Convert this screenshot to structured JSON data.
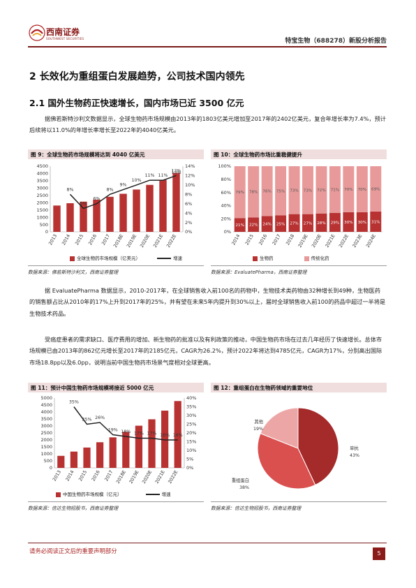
{
  "header": {
    "logo_cn": "西南证券",
    "logo_en": "SOUTHWEST SECURITIES",
    "report_title": "特宝生物（688278）新股分析报告"
  },
  "section": {
    "title": "2  长效化为重组蛋白发展趋势，公司技术国内领先",
    "subtitle": "2.1 国外生物药正快速增长，国内市场已近 3500 亿元"
  },
  "paragraphs": {
    "p1": "据佛若斯特沙利文数据显示，全球生物药市场规模由2013年的1803亿美元增加至2017年的2402亿美元，复合年增长率为7.4%，预计后续将以11.0%的年增长率增长至2022年的4040亿美元。",
    "p2": "据 EvaluatePharma 数据显示，2010-2017年，在全球销售收入前100名的药物中，生物技术类药物由32种增长到49种，生物医药的销售额占比从2010年的17%上升到2017年的25%，并有望在未来5年内提升到30%以上，届时全球销售收入前100的药品中超过一半将是生物技术药品。",
    "p3": "受癌症患者的需求缺口、医疗费用的增加、新生物药的批准以及有利政策的推动，中国生物药市场在过去几年经历了快速增长。总体市场规模已由2013年的862亿元增长至2017年的2185亿元，CAGR为26.2%，预计2022年将达到4785亿元，CAGR为17%，分别高出国际市场18.8pp以及6.0pp，说明当前中国生物药市场景气度相对全球更高。"
  },
  "figures": {
    "f9": {
      "title": "图 9：全球生物药市场规模将达到 4040 亿美元",
      "source": "数据来源：佛若斯特沙利文，西南证券整理",
      "legend_bar": "全球生物药市场规模（亿美元）",
      "legend_line": "增速"
    },
    "f10": {
      "title": "图 10：全球生物药市场比重稳健提升",
      "source": "数据来源：EvaluatePharma，西南证券整理",
      "legend_a": "生物药",
      "legend_b": "传统化药"
    },
    "f11": {
      "title": "图 11：预计中国生物药市场规模将接近 5000 亿元",
      "source": "数据来源：信达生物招股书，西南证券整理",
      "legend_bar": "中国生物药市场规模（亿元）",
      "legend_line": "增速"
    },
    "f12": {
      "title": "图 12：重组蛋白在生物药领域的重要地位",
      "source": "数据来源：信达生物招股书，西南证券整理"
    }
  },
  "chart_data": [
    {
      "type": "bar",
      "categories": [
        "2013",
        "2014",
        "2015",
        "2016",
        "2017",
        "2018E",
        "2019E",
        "2020E",
        "2021E",
        "2022E"
      ],
      "series": [
        {
          "name": "全球生物药市场规模（亿美元）",
          "values": [
            1803,
            1964,
            2069,
            2209,
            2402,
            2610,
            2900,
            3220,
            3560,
            4040
          ],
          "color": "#b83232"
        },
        {
          "name": "增速",
          "values": [
            null,
            8,
            5,
            6,
            8,
            9,
            10,
            11,
            11,
            12
          ],
          "color": "#222222"
        }
      ],
      "point_labels": [
        "",
        "8%",
        "5%",
        "6%",
        "8%",
        "9%",
        "10%",
        "11%",
        "11%",
        "12%"
      ],
      "extra_labels": [
        "13%"
      ],
      "left_ticks": [
        "0",
        "500",
        "1000",
        "1500",
        "2000",
        "2500",
        "3000",
        "3500",
        "4000",
        "4500"
      ],
      "right_ticks": [
        "0%",
        "2%",
        "4%",
        "6%",
        "8%",
        "10%",
        "12%",
        "14%"
      ],
      "ylim": [
        0,
        4500
      ],
      "y2lim": [
        0,
        14
      ]
    },
    {
      "type": "bar",
      "categories": [
        "2014",
        "2015",
        "2016",
        "2017",
        "2018",
        "2019E",
        "2020E",
        "2021E",
        "2022E",
        "2023E",
        "2024E"
      ],
      "series": [
        {
          "name": "生物药",
          "values": [
            21,
            22,
            24,
            25,
            27,
            27,
            28,
            29,
            30,
            30,
            31
          ],
          "color": "#b83232"
        },
        {
          "name": "传统化药",
          "values": [
            79,
            78,
            76,
            75,
            73,
            73,
            72,
            71,
            70,
            70,
            69
          ],
          "color": "#e89a9a"
        }
      ],
      "left_ticks": [
        "0%",
        "20%",
        "40%",
        "60%",
        "80%",
        "100%"
      ],
      "ylim": [
        0,
        100
      ]
    },
    {
      "type": "bar",
      "categories": [
        "2013",
        "2014",
        "2015",
        "2016",
        "2017",
        "2018E",
        "2019E",
        "2020E",
        "2021E",
        "2022E"
      ],
      "series": [
        {
          "name": "中国生物药市场规模（亿元）",
          "values": [
            862,
            1167,
            1457,
            1836,
            2185,
            2580,
            3020,
            3480,
            4100,
            4785
          ],
          "color": "#b83232"
        },
        {
          "name": "增速",
          "values": [
            null,
            35,
            25,
            26,
            19,
            18,
            17,
            17,
            16,
            16
          ],
          "color": "#222222"
        }
      ],
      "point_labels": [
        "",
        "35%",
        "25%",
        "26%",
        "19%",
        "18%",
        "17%",
        "17%",
        "16%",
        "16%"
      ],
      "left_ticks": [
        "0",
        "500",
        "1000",
        "1500",
        "2000",
        "2500",
        "3000",
        "3500",
        "4000",
        "4500",
        "5000"
      ],
      "right_ticks": [
        "0%",
        "5%",
        "10%",
        "15%",
        "20%",
        "25%",
        "30%",
        "35%",
        "40%"
      ],
      "ylim": [
        0,
        5000
      ],
      "y2lim": [
        0,
        40
      ]
    },
    {
      "type": "pie",
      "slices": [
        {
          "name": "单抗",
          "value": 43,
          "label": "单抗\n43%",
          "color": "#a52a2a"
        },
        {
          "name": "重组蛋白",
          "value": 38,
          "label": "重组蛋白\n38%",
          "color": "#d9504f"
        },
        {
          "name": "其他",
          "value": 19,
          "label": "其他\n19%",
          "color": "#eda6a6"
        }
      ]
    }
  ],
  "footer": {
    "notice": "请务必阅读正文后的重要声明部分",
    "page": "5"
  }
}
